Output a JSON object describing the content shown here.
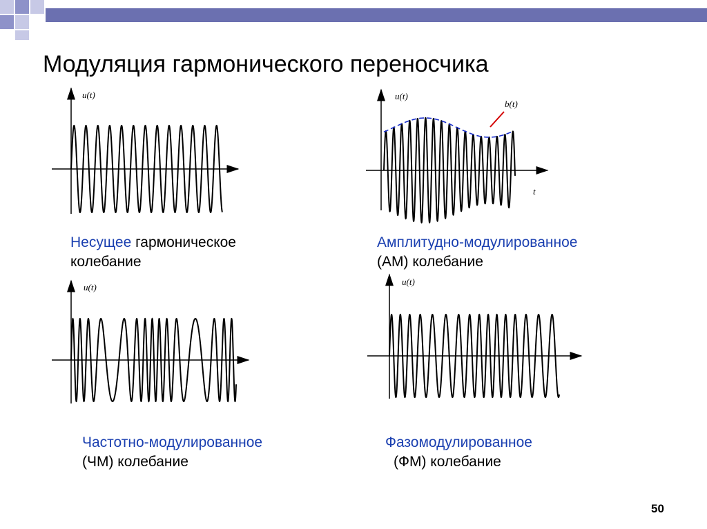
{
  "slide": {
    "title": "Модуляция гармонического переносчика",
    "page_number": "50"
  },
  "panels": {
    "carrier": {
      "ylabel": "u(t)",
      "caption_highlight": "Несущее",
      "caption_rest": " гармоническое",
      "caption_line2": "колебание"
    },
    "am": {
      "ylabel": "u(t)",
      "envelope_label": "b(t)",
      "xlabel": "t",
      "caption_line1": "Амплитудно-модулированное",
      "caption_line2": "(АМ) колебание"
    },
    "fm": {
      "ylabel": "u(t)",
      "caption_line1": "Частотно-модулированное",
      "caption_line2": "(ЧМ) колебание"
    },
    "pm": {
      "ylabel": "u(t)",
      "caption_line1": "Фазомодулированное",
      "caption_line2": "(ФМ) колебание"
    }
  },
  "colors": {
    "deco_square": "#b8bbe0",
    "deco_square_dark": "#8b8fc9",
    "deco_bar": "#6b70b0",
    "caption_blue": "#1a3fb0",
    "envelope": "#1a2fcc"
  }
}
